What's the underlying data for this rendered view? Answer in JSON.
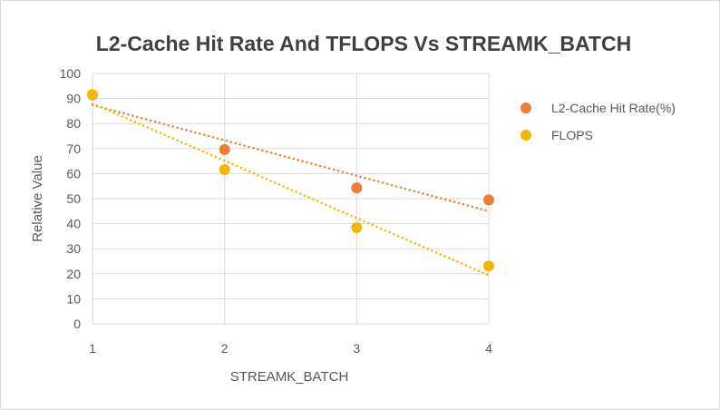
{
  "chart_data": {
    "type": "scatter",
    "title": "L2-Cache Hit Rate And TFLOPS Vs STREAMK_BATCH",
    "xlabel": "STREAMK_BATCH",
    "ylabel": "Relative Value",
    "xlim": [
      1,
      4
    ],
    "ylim": [
      0,
      100
    ],
    "xticks": [
      "1",
      "2",
      "3",
      "4"
    ],
    "yticks": [
      "0",
      "10",
      "20",
      "30",
      "40",
      "50",
      "60",
      "70",
      "80",
      "90",
      "100"
    ],
    "grid": true,
    "legend_position": "right",
    "trendline": "linear, dotted",
    "series": [
      {
        "name": "L2-Cache Hit Rate(%)",
        "color": "#ED7D31",
        "x": [
          1,
          2,
          3,
          4
        ],
        "y": [
          91.5,
          69.6,
          54.3,
          49.5
        ]
      },
      {
        "name": "FLOPS",
        "color": "#F2B800",
        "x": [
          1,
          2,
          3,
          4
        ],
        "y": [
          91.6,
          61.6,
          38.4,
          23.1
        ]
      }
    ]
  }
}
